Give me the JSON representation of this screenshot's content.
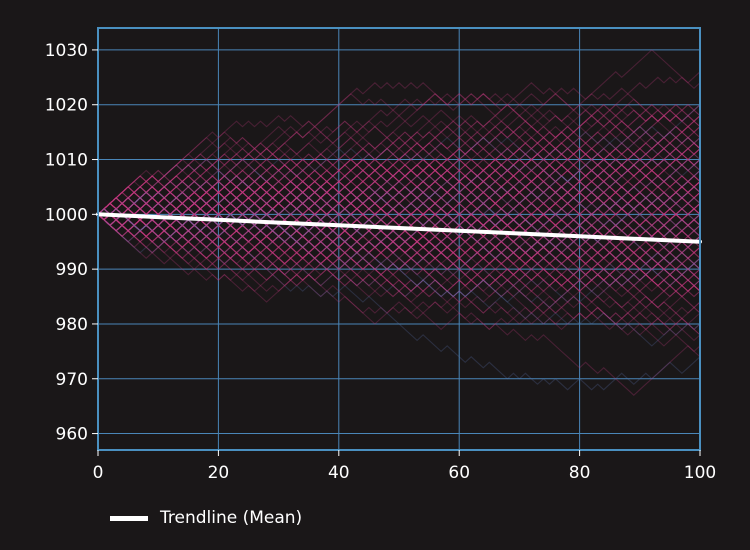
{
  "chart_data": {
    "type": "line",
    "title": "",
    "xlabel": "",
    "ylabel": "",
    "xlim": [
      0,
      100
    ],
    "ylim": [
      957,
      1034
    ],
    "x_ticks": [
      0,
      20,
      40,
      60,
      80,
      100
    ],
    "y_ticks": [
      960,
      970,
      980,
      990,
      1000,
      1010,
      1020,
      1030
    ],
    "grid": true,
    "legend_position": "bottom-left",
    "colors": {
      "background": "#1a1718",
      "frame": "#4a90c0",
      "grid": "#4a86b8",
      "paths": "#c2387f",
      "paths_alt": "#5a6ea8",
      "trendline": "#ffffff"
    },
    "simulation": {
      "description_visible": "many random-walk paths starting at 1000, step +/-1",
      "start": 1000,
      "steps": 100,
      "path_count": 200
    },
    "series": [
      {
        "name": "Trendline (Mean)",
        "x": [
          0,
          10,
          20,
          30,
          40,
          50,
          60,
          70,
          80,
          90,
          100
        ],
        "values": [
          1000,
          999.5,
          999,
          998.5,
          998,
          997.5,
          997,
          996.5,
          996,
          995.5,
          995
        ]
      }
    ]
  }
}
